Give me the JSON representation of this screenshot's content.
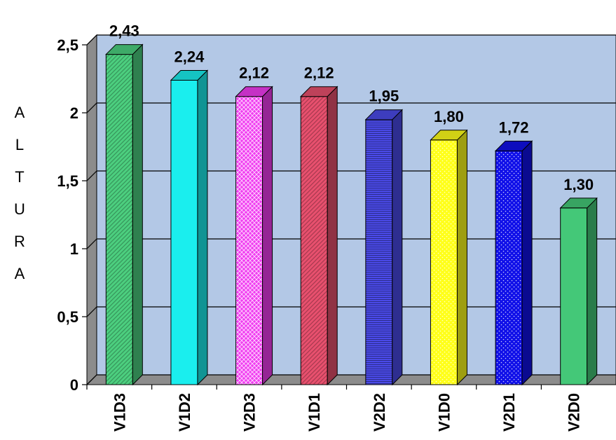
{
  "chart_data": {
    "type": "bar",
    "title": "",
    "xlabel": "",
    "ylabel": [
      "A",
      "L",
      "T",
      "U",
      "R",
      "A"
    ],
    "ylim": [
      0,
      2.5
    ],
    "yticks": [
      {
        "value": 0,
        "label": "0"
      },
      {
        "value": 0.5,
        "label": "0,5"
      },
      {
        "value": 1,
        "label": "1"
      },
      {
        "value": 1.5,
        "label": "1,5"
      },
      {
        "value": 2,
        "label": "2"
      },
      {
        "value": 2.5,
        "label": "2,5"
      }
    ],
    "grid": true,
    "legend": "none",
    "bars": [
      {
        "category": "V1D3",
        "value": 2.43,
        "label": "2,43",
        "color": "#4ccf7f",
        "pattern": "diag"
      },
      {
        "category": "V1D2",
        "value": 2.24,
        "label": "2,24",
        "color": "#1aeeee",
        "pattern": "none"
      },
      {
        "category": "V2D3",
        "value": 2.12,
        "label": "2,12",
        "color": "#f03cf0",
        "pattern": "weave"
      },
      {
        "category": "V1D1",
        "value": 2.12,
        "label": "2,12",
        "color": "#e8506e",
        "pattern": "diag"
      },
      {
        "category": "V2D2",
        "value": 1.95,
        "label": "1,95",
        "color": "#4a4ae8",
        "pattern": "horiz"
      },
      {
        "category": "V1D0",
        "value": 1.8,
        "label": "1,80",
        "color": "#ffff1a",
        "pattern": "dots"
      },
      {
        "category": "V2D1",
        "value": 1.72,
        "label": "1,72",
        "color": "#1010e8",
        "pattern": "dots"
      },
      {
        "category": "V2D0",
        "value": 1.3,
        "label": "1,30",
        "color": "#44c878",
        "pattern": "none"
      }
    ],
    "colors": {
      "plot_background": "#b3c8e6",
      "wall_side": "#8c8c8c",
      "floor": "#8c8c8c",
      "gridline": "#000000"
    }
  }
}
